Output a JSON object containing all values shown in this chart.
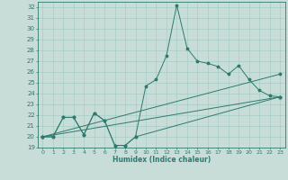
{
  "title": "",
  "xlabel": "Humidex (Indice chaleur)",
  "ylabel": "",
  "bg_color": "#c8ddd8",
  "line_color": "#2d7a6e",
  "grid_color": "#a8ccc6",
  "ylim": [
    19,
    32.5
  ],
  "xlim": [
    -0.5,
    23.5
  ],
  "yticks": [
    19,
    20,
    21,
    22,
    23,
    24,
    25,
    26,
    27,
    28,
    29,
    30,
    31,
    32
  ],
  "xticks": [
    0,
    1,
    2,
    3,
    4,
    5,
    6,
    7,
    8,
    9,
    10,
    11,
    12,
    13,
    14,
    15,
    16,
    17,
    18,
    19,
    20,
    21,
    22,
    23
  ],
  "lines": [
    {
      "x": [
        0,
        1,
        2,
        3,
        4,
        5,
        6,
        7,
        8,
        9,
        10,
        11,
        12,
        13,
        14,
        15,
        16,
        17,
        18,
        19,
        20,
        21,
        22,
        23
      ],
      "y": [
        20,
        20,
        21.8,
        21.8,
        20.2,
        22.2,
        21.5,
        19.2,
        19.2,
        20.0,
        24.7,
        25.3,
        27.5,
        32.2,
        28.2,
        27.0,
        26.8,
        26.5,
        25.8,
        26.6,
        25.3,
        24.3,
        23.8,
        23.7
      ]
    },
    {
      "x": [
        0,
        1,
        2,
        3,
        4,
        5,
        6,
        7,
        8,
        9,
        23
      ],
      "y": [
        20,
        20,
        21.8,
        21.8,
        20.2,
        22.2,
        21.5,
        19.2,
        19.2,
        20.0,
        23.7
      ]
    },
    {
      "x": [
        0,
        23
      ],
      "y": [
        20.0,
        23.7
      ]
    },
    {
      "x": [
        0,
        23
      ],
      "y": [
        20.0,
        25.8
      ]
    }
  ]
}
